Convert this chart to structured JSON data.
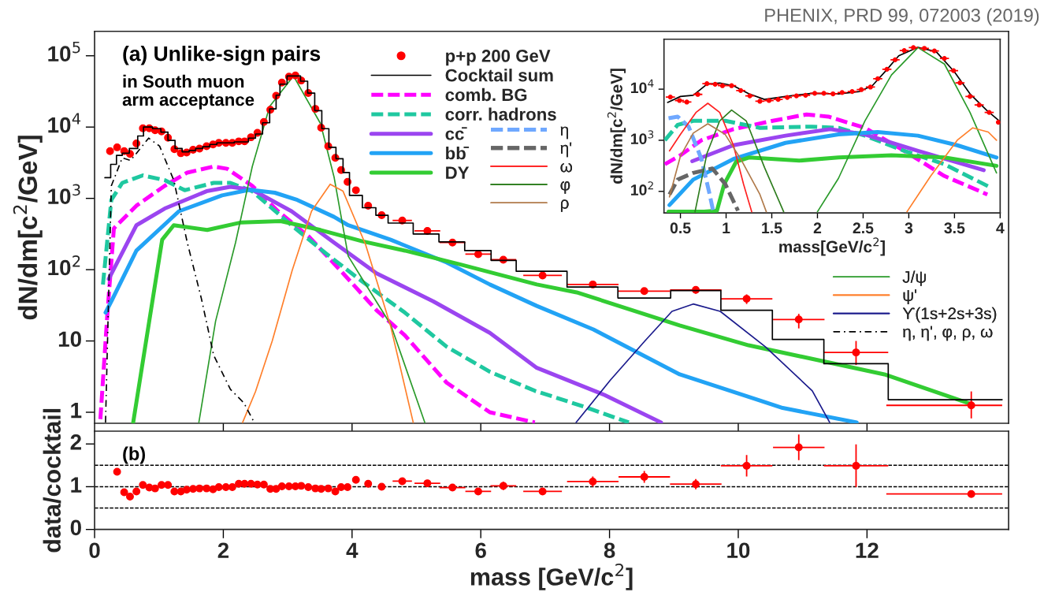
{
  "chart_data": [
    {
      "type": "line",
      "ylabel": "dN/dm[c$^{2}$/GeV]",
      "log": "y",
      "tick_labels": "y",
      "legend": "top",
      "xlim": [
        0,
        14.2
      ],
      "xticks": [
        0,
        2,
        4,
        6,
        8,
        10,
        12
      ],
      "ylim": [
        0.7,
        220000
      ],
      "yticks": [
        1,
        10,
        {
          "value": 100,
          "label": "10$^{2}$"
        },
        {
          "value": 1000,
          "label": "10$^{3}$"
        },
        {
          "value": 10000,
          "label": "10$^{4}$"
        },
        {
          "value": 100000,
          "label": "10$^{5}$"
        }
      ],
      "annotations": [
        "(a) Unlike-sign pairs",
        "in South muon\narm acceptance",
        "PHENIX, PRD 99, 072003 (2019)"
      ],
      "series": [
        {
          "name": "p+p 200 GeV",
          "type": "scatter",
          "marker": "circle",
          "color": "#ff0000",
          "x": [
            0.24,
            0.35,
            0.46,
            0.55,
            0.65,
            0.75,
            0.85,
            0.94,
            1.04,
            1.14,
            1.24,
            1.34,
            1.43,
            1.53,
            1.63,
            1.74,
            1.84,
            1.93,
            2.04,
            2.14,
            2.24,
            2.33,
            2.43,
            2.53,
            2.63,
            2.73,
            2.82,
            2.91,
            3.02,
            3.12,
            3.21,
            3.32,
            3.43,
            3.52,
            3.63,
            3.74,
            3.83,
            3.93,
            4.06,
            4.25,
            4.46,
            4.78,
            5.17,
            5.56,
            5.96,
            6.35,
            6.96,
            7.74,
            8.54,
            9.34,
            10.13,
            10.94,
            11.83,
            13.62
          ],
          "values": [
            4600,
            5200,
            4600,
            4200,
            5900,
            9600,
            9600,
            9000,
            8700,
            7100,
            4900,
            4300,
            4400,
            4800,
            5000,
            5400,
            5700,
            6000,
            6000,
            6000,
            6300,
            6300,
            7200,
            8300,
            11800,
            17500,
            27500,
            42000,
            51000,
            53000,
            45000,
            30000,
            18000,
            9800,
            5400,
            3700,
            2500,
            1700,
            1300,
            790,
            580,
            490,
            350,
            240,
            165,
            138,
            83,
            62,
            50,
            52,
            39,
            20,
            6.9,
            1.25
          ],
          "errors": [
            null,
            null,
            null,
            null,
            null,
            null,
            null,
            null,
            null,
            null,
            null,
            null,
            null,
            null,
            null,
            null,
            null,
            null,
            null,
            null,
            null,
            null,
            null,
            null,
            null,
            null,
            null,
            null,
            null,
            null,
            null,
            null,
            null,
            null,
            null,
            null,
            null,
            null,
            null,
            null,
            null,
            null,
            null,
            null,
            null,
            null,
            null,
            null,
            null,
            [
              46,
              58
            ],
            [
              33,
              45
            ],
            [
              15,
              24
            ],
            [
              4.6,
              10
            ],
            [
              0.82,
              1.96
            ]
          ],
          "xerrors": [
            null,
            null,
            null,
            null,
            null,
            null,
            null,
            null,
            null,
            null,
            null,
            null,
            null,
            null,
            null,
            null,
            null,
            null,
            null,
            null,
            null,
            null,
            null,
            null,
            null,
            null,
            null,
            null,
            null,
            null,
            null,
            null,
            null,
            null,
            null,
            null,
            null,
            null,
            null,
            null,
            null,
            0.15,
            0.2,
            0.2,
            0.2,
            0.2,
            0.3,
            0.4,
            0.4,
            0.4,
            0.4,
            0.4,
            0.5,
            [
              12.3,
              14.1
            ]
          ]
        },
        {
          "name": "Cocktail sum",
          "type": "step",
          "color": "#000000",
          "x": [
            0.16,
            0.25,
            0.34,
            0.43,
            0.54,
            0.67,
            0.76,
            0.9,
            1.03,
            1.14,
            1.25,
            1.36,
            1.47,
            1.57,
            1.68,
            1.79,
            1.9,
            2.17,
            2.39,
            2.5,
            2.61,
            2.72,
            2.82,
            2.88,
            2.99,
            3.2,
            3.31,
            3.42,
            3.53,
            3.64,
            3.75,
            3.86,
            3.96,
            4.16,
            4.37,
            4.56,
            4.95,
            5.35,
            5.75,
            6.16,
            6.55,
            7.34,
            8.13,
            8.95,
            9.73,
            10.53,
            11.33,
            12.33,
            14.1
          ],
          "values": [
            1950,
            3000,
            4000,
            4300,
            5000,
            7500,
            10000,
            9500,
            8500,
            6500,
            5000,
            4500,
            4700,
            5000,
            5300,
            5700,
            6000,
            6200,
            7000,
            8000,
            11500,
            18000,
            28000,
            40000,
            52000,
            44000,
            30000,
            17000,
            9500,
            5200,
            3600,
            2300,
            1100,
            740,
            580,
            450,
            316,
            245,
            185,
            135,
            95,
            57,
            40,
            51,
            27,
            10.5,
            4.8,
            1.5,
            1.5
          ]
        },
        {
          "name": "comb. BG",
          "color": "#ff00ff",
          "line_style": "dashed",
          "x": [
            0.09,
            0.2,
            0.3,
            0.65,
            1.09,
            1.44,
            1.85,
            2.06,
            2.45,
            2.85,
            3.33,
            3.86,
            4.38,
            4.82,
            5.47,
            6.14,
            6.84
          ],
          "values": [
            0.8,
            25,
            380,
            790,
            1500,
            2300,
            2800,
            2600,
            1500,
            660,
            290,
            89,
            27,
            12,
            2.6,
            1.0,
            0.72
          ]
        },
        {
          "name": "corr. hadrons",
          "color": "#1fc8a0",
          "line_style": "dashed",
          "x": [
            0.13,
            0.26,
            0.43,
            0.75,
            1.09,
            1.4,
            1.85,
            2.11,
            2.45,
            3.06,
            3.59,
            4.16,
            4.82,
            5.47,
            6.14,
            6.84,
            7.6,
            8.3
          ],
          "values": [
            62,
            950,
            1650,
            2100,
            1800,
            1300,
            1650,
            1650,
            1260,
            420,
            170,
            68,
            25,
            8.3,
            3.7,
            2.0,
            1.2,
            0.72
          ]
        },
        {
          "name": "cc̄",
          "color": "#9b45f0",
          "x": [
            0.22,
            0.65,
            1.09,
            1.74,
            2.11,
            2.45,
            3.06,
            3.72,
            4.38,
            5.26,
            6.14,
            6.87,
            7.92,
            8.8
          ],
          "values": [
            74,
            420,
            720,
            1260,
            1450,
            1320,
            660,
            240,
            89,
            36,
            13,
            4.2,
            1.75,
            0.72
          ]
        },
        {
          "name": "bb̄",
          "color": "#22a3f5",
          "x": [
            0.17,
            0.26,
            0.65,
            1.31,
            1.98,
            2.41,
            2.8,
            3.15,
            3.72,
            3.94,
            4.6,
            5.47,
            6.14,
            6.87,
            7.75,
            9.09,
            10.69,
            11.84
          ],
          "values": [
            25,
            36,
            185,
            660,
            1100,
            1320,
            1200,
            950,
            550,
            420,
            263,
            126,
            62,
            31,
            14.5,
            3.4,
            1.15,
            0.72
          ]
        },
        {
          "name": "DY",
          "color": "#33cc33",
          "x": [
            0.6,
            0.87,
            1.05,
            1.23,
            1.75,
            2.28,
            2.89,
            3.51,
            4.16,
            4.82,
            5.7,
            6.87,
            7.49,
            9.09,
            10.16,
            12.27,
            13.62
          ],
          "values": [
            0.72,
            25,
            263,
            420,
            360,
            460,
            480,
            360,
            250,
            185,
            117,
            62,
            48,
            16.5,
            8.7,
            3.4,
            1.3
          ]
        },
        {
          "name": "J/ψ",
          "color": "#2a9a2a",
          "x": [
            1.62,
            1.88,
            2.19,
            2.45,
            2.72,
            3.09,
            3.51,
            3.72,
            3.94,
            4.16,
            4.6,
            5.13
          ],
          "values": [
            0.72,
            19,
            240,
            2800,
            19500,
            52000,
            11200,
            2000,
            155,
            74,
            17,
            0.72
          ]
        },
        {
          "name": "ψ'",
          "color": "#ff7f2a",
          "x": [
            2.3,
            2.5,
            2.76,
            3.07,
            3.37,
            3.66,
            3.86,
            4.21,
            4.6,
            4.95
          ],
          "values": [
            0.72,
            1.95,
            10,
            98,
            660,
            1580,
            1260,
            225,
            16,
            0.72
          ]
        },
        {
          "name": "ϒ(1s+2s+3s)",
          "color": "#1a1a8c",
          "x": [
            7.48,
            8.01,
            8.55,
            8.97,
            9.3,
            9.72,
            10.42,
            11.15,
            11.42
          ],
          "values": [
            0.72,
            2.8,
            10,
            26,
            33,
            26,
            8.3,
            2.0,
            0.72
          ]
        },
        {
          "name": "η, η', φ, ρ, ω",
          "color": "#000000",
          "line_style": "dotted",
          "x": [
            0.17,
            0.26,
            0.43,
            0.56,
            0.84,
            1.01,
            1.23,
            1.44,
            1.66,
            1.85,
            2.11,
            2.32,
            2.48
          ],
          "values": [
            0.72,
            1500,
            3700,
            3400,
            7000,
            5400,
            1800,
            240,
            39,
            6.3,
            2.1,
            1.35,
            0.72
          ]
        }
      ]
    },
    {
      "type": "scatter",
      "xlabel": "mass [GeV/c$^{2}$]",
      "ylabel": "data/cocktail",
      "marker": "circle",
      "color": "#ff0000",
      "xlim": [
        0,
        14.2
      ],
      "xticks": [
        0,
        2,
        4,
        6,
        8,
        10,
        12
      ],
      "ylim": [
        0,
        2.3
      ],
      "yticks": [
        0,
        1,
        2
      ],
      "annotations": [
        "(b)"
      ],
      "ref_lines": [
        {
          "axis": "y",
          "value": 0.5,
          "color": "#000000",
          "line_style": "dashed"
        },
        {
          "axis": "y",
          "value": 1,
          "color": "#000000",
          "line_style": "dashed"
        },
        {
          "axis": "y",
          "value": 1.5,
          "color": "#000000",
          "line_style": "dashed"
        }
      ],
      "x": [
        0.35,
        0.46,
        0.55,
        0.65,
        0.75,
        0.85,
        0.94,
        1.04,
        1.14,
        1.24,
        1.34,
        1.43,
        1.53,
        1.63,
        1.74,
        1.84,
        1.93,
        2.04,
        2.14,
        2.24,
        2.33,
        2.43,
        2.53,
        2.63,
        2.73,
        2.82,
        2.91,
        3.02,
        3.12,
        3.21,
        3.32,
        3.43,
        3.52,
        3.63,
        3.74,
        3.83,
        3.93,
        4.06,
        4.25,
        4.46,
        4.78,
        5.17,
        5.56,
        5.96,
        6.35,
        6.96,
        7.74,
        8.54,
        9.34,
        10.13,
        10.94,
        11.83,
        13.62
      ],
      "values": [
        1.35,
        0.87,
        0.77,
        0.89,
        1.04,
        0.98,
        0.96,
        1.04,
        1.04,
        0.89,
        0.89,
        0.93,
        0.95,
        0.96,
        0.96,
        0.94,
        0.99,
        0.99,
        0.99,
        1.07,
        1.07,
        1.07,
        1.05,
        1.05,
        0.95,
        0.95,
        1.01,
        1.01,
        1.01,
        1.02,
        0.99,
        0.96,
        0.95,
        0.96,
        0.89,
        0.99,
        0.99,
        1.16,
        1.07,
        1.0,
        1.13,
        1.08,
        0.98,
        0.89,
        1.02,
        0.89,
        1.12,
        1.23,
        1.06,
        1.49,
        1.92,
        1.49,
        0.83
      ],
      "errors": [
        null,
        null,
        null,
        null,
        null,
        null,
        null,
        null,
        null,
        null,
        null,
        null,
        null,
        null,
        null,
        null,
        null,
        null,
        null,
        null,
        null,
        null,
        null,
        null,
        null,
        null,
        null,
        null,
        null,
        null,
        null,
        null,
        null,
        null,
        null,
        null,
        null,
        null,
        null,
        null,
        null,
        null,
        null,
        null,
        0.1,
        null,
        0.12,
        0.14,
        0.12,
        0.25,
        0.3,
        0.5,
        null
      ],
      "xerrors": [
        null,
        null,
        null,
        null,
        null,
        null,
        null,
        null,
        null,
        null,
        null,
        null,
        null,
        null,
        null,
        null,
        null,
        null,
        null,
        null,
        null,
        null,
        null,
        null,
        null,
        null,
        null,
        null,
        null,
        null,
        null,
        null,
        null,
        null,
        null,
        null,
        null,
        null,
        null,
        null,
        0.15,
        0.2,
        0.2,
        0.2,
        0.2,
        0.3,
        0.4,
        0.4,
        0.4,
        0.4,
        0.4,
        0.5,
        [
          12.3,
          14.1
        ]
      ]
    },
    {
      "type": "line",
      "xlabel": "mass[GeV/c$^{2}$]",
      "ylabel": "dN/dm[c$^{2}$/GeV]",
      "log": "y",
      "legend": "left",
      "xlim": [
        0.32,
        4.0
      ],
      "xticks": [
        0.5,
        1,
        1.5,
        2,
        2.5,
        3,
        3.5,
        4
      ],
      "ylim": [
        38,
        95000
      ],
      "yticks": [
        {
          "value": 100,
          "label": "10$^{2}$"
        },
        {
          "value": 1000,
          "label": "10$^{3}$"
        },
        {
          "value": 10000,
          "label": "10$^{4}$"
        }
      ],
      "series": [
        {
          "type": "scatter",
          "marker": "circle",
          "color": "#ff0000",
          "x": [
            0.39,
            0.49,
            0.57,
            0.69,
            0.79,
            0.88,
            0.96,
            1.06,
            1.16,
            1.26,
            1.37,
            1.47,
            1.57,
            1.67,
            1.77,
            1.87,
            1.97,
            2.07,
            2.17,
            2.27,
            2.38,
            2.48,
            2.58,
            2.66,
            2.76,
            2.85,
            2.95,
            3.05,
            3.17,
            3.28,
            3.39,
            3.49,
            3.56,
            3.67,
            3.77,
            3.88,
            3.98
          ],
          "values": [
            7000,
            6000,
            5600,
            7900,
            12800,
            12500,
            11700,
            11700,
            9400,
            7400,
            5800,
            6000,
            6300,
            6900,
            7400,
            7600,
            8300,
            8300,
            8100,
            8600,
            9000,
            9800,
            11000,
            16000,
            24500,
            37500,
            57000,
            65000,
            63000,
            56000,
            40000,
            23000,
            13300,
            7200,
            4900,
            3500,
            2250
          ],
          "xerrors": [
            0.05,
            0.05,
            0.05,
            0.05,
            0.05,
            0.05,
            0.05,
            0.05,
            0.05,
            0.05,
            0.05,
            0.05,
            0.05,
            0.05,
            0.05,
            0.05,
            0.05,
            0.05,
            0.05,
            0.05,
            0.05,
            0.05,
            0.05,
            0.05,
            0.05,
            0.05,
            0.05,
            0.05,
            0.05,
            0.05,
            0.05,
            0.05,
            0.05,
            0.05,
            0.05,
            0.05,
            0.02
          ]
        },
        {
          "color": "#000000",
          "x": [
            0.36,
            0.5,
            0.64,
            0.79,
            0.93,
            1.08,
            1.25,
            1.42,
            1.65,
            1.94,
            2.23,
            2.46,
            2.6,
            2.75,
            2.89,
            3.1,
            3.3,
            3.5,
            3.67,
            3.85,
            3.99
          ],
          "values": [
            5500,
            7200,
            7600,
            12500,
            13200,
            11700,
            8100,
            6300,
            7200,
            8300,
            8100,
            9000,
            11700,
            23000,
            45000,
            66000,
            54000,
            21700,
            8100,
            3900,
            2400
          ]
        },
        {
          "color": "#ff00ff",
          "line_style": "dashed",
          "x": [
            0.33,
            0.5,
            0.73,
            1.08,
            1.51,
            1.88,
            2.12,
            2.52,
            2.95,
            3.39,
            3.86
          ],
          "values": [
            340,
            510,
            1000,
            1650,
            2400,
            3200,
            2900,
            1750,
            620,
            200,
            87
          ]
        },
        {
          "color": "#1fc8a0",
          "line_style": "dashed",
          "x": [
            0.33,
            0.47,
            0.64,
            0.99,
            1.37,
            1.94,
            2.23,
            2.52,
            2.95,
            3.39,
            3.9
          ],
          "values": [
            1000,
            2000,
            2400,
            2400,
            1750,
            1850,
            1750,
            1230,
            620,
            340,
            118
          ]
        },
        {
          "color": "#9b45f0",
          "x": [
            0.63,
            1.08,
            1.65,
            2.14,
            2.52,
            3.1,
            3.82
          ],
          "values": [
            390,
            800,
            1230,
            1650,
            1300,
            620,
            260
          ]
        },
        {
          "color": "#22a3f5",
          "x": [
            0.38,
            0.64,
            1.08,
            1.65,
            2.23,
            2.66,
            3.1,
            3.53,
            3.96
          ],
          "values": [
            54,
            170,
            430,
            890,
            1300,
            1450,
            1230,
            800,
            460
          ]
        },
        {
          "color": "#33cc33",
          "x": [
            0.37,
            0.76,
            0.9,
            0.98,
            1.11,
            1.25,
            1.8,
            2.23,
            2.81,
            3.39,
            3.96
          ],
          "values": [
            40,
            40,
            42,
            140,
            380,
            460,
            400,
            460,
            510,
            460,
            316
          ]
        },
        {
          "name": "η",
          "color": "#6fa8ff",
          "line_style": "dashed",
          "x": [
            0.37,
            0.47,
            0.59,
            0.73,
            0.82,
            0.86
          ],
          "values": [
            2700,
            2900,
            1850,
            430,
            87,
            40
          ]
        },
        {
          "name": "η'",
          "color": "#666666",
          "line_style": "dashed",
          "x": [
            0.38,
            0.47,
            0.64,
            0.85,
            0.99,
            1.13
          ],
          "values": [
            87,
            170,
            230,
            280,
            140,
            42
          ]
        },
        {
          "name": "ω",
          "color": "#ff2020",
          "x": [
            0.38,
            0.5,
            0.67,
            0.8,
            0.93,
            1.08,
            1.19,
            1.28
          ],
          "values": [
            620,
            1300,
            3500,
            5300,
            3500,
            800,
            140,
            40
          ]
        },
        {
          "name": "φ",
          "color": "#2e7d1e",
          "x": [
            0.66,
            0.79,
            0.93,
            1.06,
            1.22,
            1.42,
            1.63
          ],
          "values": [
            40,
            550,
            2400,
            3900,
            2400,
            295,
            40
          ]
        },
        {
          "name": "ρ",
          "color": "#b07a4a",
          "x": [
            0.38,
            0.5,
            0.64,
            0.8,
            0.99,
            1.16,
            1.37,
            1.44
          ],
          "values": [
            78,
            490,
            1380,
            2100,
            1300,
            430,
            87,
            40
          ]
        },
        {
          "color": "#2a9a2a",
          "x": [
            2.0,
            2.23,
            2.52,
            2.81,
            3.1,
            3.39,
            3.67,
            3.96
          ],
          "values": [
            40,
            180,
            2400,
            19000,
            65000,
            31000,
            3500,
            230
          ]
        },
        {
          "color": "#ff7f2a",
          "x": [
            2.98,
            3.24,
            3.53,
            3.7,
            3.87,
            3.96
          ],
          "values": [
            40,
            200,
            1000,
            1750,
            1450,
            1000
          ]
        }
      ]
    }
  ]
}
